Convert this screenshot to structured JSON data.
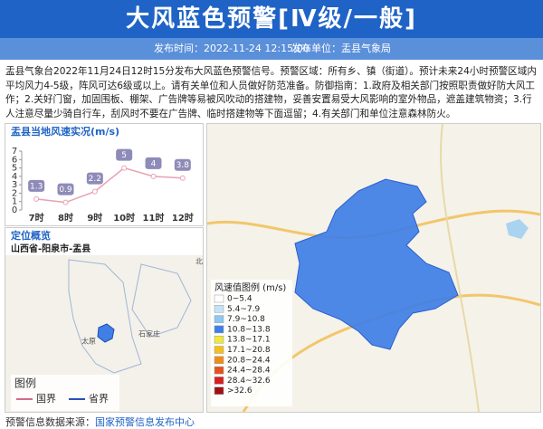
{
  "header": {
    "title": "大风蓝色预警[Ⅳ级/一般]",
    "time": "发布时间：2022-11-24 12:15:00",
    "unit": "发布单位：盂县气象局"
  },
  "body": "盂县气象台2022年11月24日12时15分发布大风蓝色预警信号。预警区域：所有乡、镇（街道）。预计未来24小时预警区域内平均风力4-5级，阵风可达6级或以上。请有关单位和人员做好防范准备。防御指南：1.政府及相关部门按照职责做好防大风工作；2.关好门窗，加固围板、棚架、广告牌等易被风吹动的搭建物，妥善安置易受大风影响的室外物品，遮盖建筑物资；3.行人注意尽量少骑自行车，刮风时不要在广告牌、临时搭建物等下面逗留；4.有关部门和单位注意森林防火。",
  "chart_data": {
    "type": "line",
    "title": "盂县当地风速实况(m/s)",
    "categories": [
      "7时",
      "8时",
      "9时",
      "10时",
      "11时",
      "12时"
    ],
    "values": [
      1.3,
      0.9,
      2.2,
      5,
      4,
      3.8
    ],
    "color": "#e8a0b4",
    "ylim": [
      0,
      7
    ],
    "yticks": [
      0,
      1,
      2,
      3,
      4,
      5,
      6,
      7
    ]
  },
  "overview": {
    "title": "定位概览",
    "location": "山西省-阳泉市-盂县",
    "places": [
      "北京",
      "太原",
      "石家庄"
    ],
    "legend_title": "图例",
    "legend": [
      "国界",
      "省界"
    ]
  },
  "wind_legend": {
    "title": "风速值图例 (m/s)",
    "items": [
      {
        "label": "0~5.4",
        "color": "#ffffff"
      },
      {
        "label": "5.4~7.9",
        "color": "#c6e2f7"
      },
      {
        "label": "7.9~10.8",
        "color": "#8cc8f0"
      },
      {
        "label": "10.8~13.8",
        "color": "#3f7fe6"
      },
      {
        "label": "13.8~17.1",
        "color": "#f2e83a"
      },
      {
        "label": "17.1~20.8",
        "color": "#f5c018"
      },
      {
        "label": "20.8~24.4",
        "color": "#f08c18"
      },
      {
        "label": "24.4~28.4",
        "color": "#e8501c"
      },
      {
        "label": "28.4~32.6",
        "color": "#d82020"
      },
      {
        "label": ">32.6",
        "color": "#a01010"
      }
    ]
  },
  "footer": {
    "label": "预警信息数据来源：",
    "source": "国家预警信息发布中心"
  }
}
